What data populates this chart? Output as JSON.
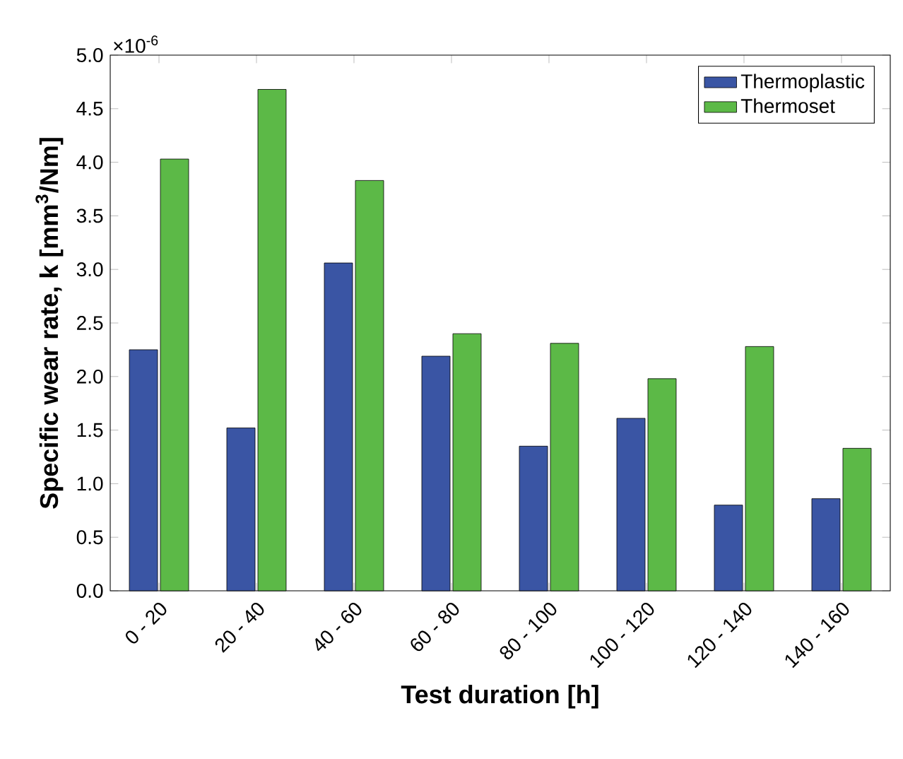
{
  "chart_data": {
    "type": "bar",
    "categories": [
      "0 - 20",
      "20 - 40",
      "40 - 60",
      "60 - 80",
      "80 - 100",
      "100 - 120",
      "120 - 140",
      "140 - 160"
    ],
    "series": [
      {
        "name": "Thermoplastic",
        "color": "#3a55a4",
        "values": [
          2.25,
          1.52,
          3.06,
          2.19,
          1.35,
          1.61,
          0.8,
          0.86
        ]
      },
      {
        "name": "Thermoset",
        "color": "#5cb947",
        "values": [
          4.03,
          4.68,
          3.83,
          2.4,
          2.31,
          1.98,
          2.28,
          1.33
        ]
      }
    ],
    "xlabel": "Test duration [h]",
    "ylabel": "Specific wear rate, k [mm$^{3}$/Nm]",
    "annotations": [
      "×10$^{-6}$"
    ],
    "ylim": [
      0,
      5
    ],
    "yticks": [
      {
        "value": 0,
        "label": "0.0"
      },
      {
        "value": 0.5,
        "label": "0.5"
      },
      {
        "value": 1,
        "label": "1.0"
      },
      {
        "value": 1.5,
        "label": "1.5"
      },
      {
        "value": 2,
        "label": "2.0"
      },
      {
        "value": 2.5,
        "label": "2.5"
      },
      {
        "value": 3,
        "label": "3.0"
      },
      {
        "value": 3.5,
        "label": "3.5"
      },
      {
        "value": 4,
        "label": "4.0"
      },
      {
        "value": 4.5,
        "label": "4.5"
      },
      {
        "value": 5,
        "label": "5.0"
      }
    ],
    "legend": "top right"
  }
}
